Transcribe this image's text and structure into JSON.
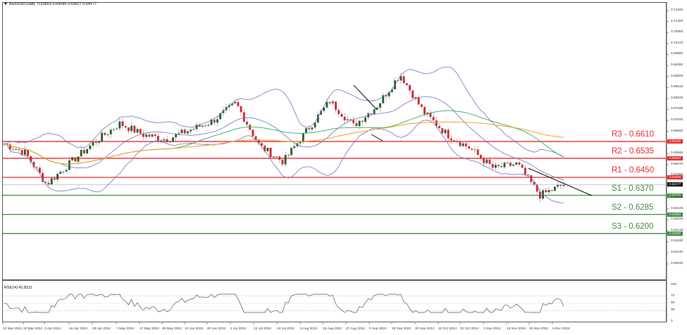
{
  "header": {
    "symbol": "AUDUSD,Daily",
    "ohlc": "0.63653 0.64289 0.63627 0.64177"
  },
  "rsi": {
    "label": "RSI(14) 41.8111",
    "ticks": [
      "100",
      "70",
      "50",
      "30",
      "0"
    ]
  },
  "levels": [
    {
      "name": "R3",
      "label": "R3 - 0.6610",
      "value": 0.661,
      "tag": "0.66100",
      "color": "#e8262a"
    },
    {
      "name": "R2",
      "label": "R2 - 0.6535",
      "value": 0.6535,
      "tag": "0.65350",
      "color": "#e8262a"
    },
    {
      "name": "R1",
      "label": "R1 - 0.6450",
      "value": 0.645,
      "tag": "0.64500",
      "color": "#e8262a"
    },
    {
      "name": "S1",
      "label": "S1 - 0.6370",
      "value": 0.637,
      "tag": "0.63700",
      "color": "#3a8a3a"
    },
    {
      "name": "S2",
      "label": "S2 - 0.6285",
      "value": 0.6285,
      "tag": "0.62850",
      "color": "#3a8a3a"
    },
    {
      "name": "S3",
      "label": "S3 - 0.6200",
      "value": 0.62,
      "tag": "0.62000",
      "color": "#3a8a3a"
    }
  ],
  "current_price_tag": "0.64177",
  "y_ticks": [
    "0.71940",
    "0.71450",
    "0.70960",
    "0.70470",
    "0.69980",
    "0.69490",
    "0.69000",
    "0.68510",
    "0.68020",
    "0.67530",
    "0.67040",
    "0.66550",
    "0.65560",
    "0.65070",
    "0.64580",
    "0.63590",
    "0.63100",
    "0.62610",
    "0.62120",
    "0.61630",
    "0.61140",
    "0.60640"
  ],
  "x_ticks": [
    "12 Mar 2024",
    "22 Mar 2024",
    "3 Apr 2024",
    "15 Apr 2024",
    "25 Apr 2024",
    "7 May 2024",
    "17 May 2024",
    "29 May 2024",
    "10 Jun 2024",
    "20 Jun 2024",
    "2 Jul 2024",
    "12 Jul 2024",
    "24 Jul 2024",
    "5 Aug 2024",
    "15 Aug 2024",
    "27 Aug 2024",
    "6 Sep 2024",
    "18 Sep 2024",
    "30 Sep 2024",
    "10 Oct 2024",
    "22 Oct 2024",
    "1 Nov 2024",
    "13 Nov 2024",
    "25 Nov 2024",
    "5 Dec 2024"
  ],
  "colors": {
    "bull": "#1e5a2a",
    "bear": "#d0202a",
    "bollinger": "#6a6fc0",
    "ma_fast": "#3cb371",
    "ma_slow": "#f39c1f",
    "trendline": "#000000",
    "price_line": "#c8c8c8"
  },
  "chart_data": {
    "type": "candlestick",
    "title": "AUDUSD,Daily",
    "instrument": "AUDUSD",
    "timeframe": "Daily",
    "last_ohlc": {
      "open": 0.63653,
      "high": 0.64289,
      "low": 0.63627,
      "close": 0.64177
    },
    "ylim": [
      0.6064,
      0.7194
    ],
    "x_range": [
      "12 Mar 2024",
      "10 Dec 2024"
    ],
    "approx_close_path": [
      {
        "date": "12 Mar 2024",
        "close": 0.66
      },
      {
        "date": "3 Apr 2024",
        "close": 0.656
      },
      {
        "date": "15 Apr 2024",
        "close": 0.642
      },
      {
        "date": "25 Apr 2024",
        "close": 0.652
      },
      {
        "date": "7 May 2024",
        "close": 0.661
      },
      {
        "date": "17 May 2024",
        "close": 0.669
      },
      {
        "date": "29 May 2024",
        "close": 0.664
      },
      {
        "date": "10 Jun 2024",
        "close": 0.662
      },
      {
        "date": "20 Jun 2024",
        "close": 0.666
      },
      {
        "date": "2 Jul 2024",
        "close": 0.67
      },
      {
        "date": "12 Jul 2024",
        "close": 0.678
      },
      {
        "date": "24 Jul 2024",
        "close": 0.659
      },
      {
        "date": "5 Aug 2024",
        "close": 0.652
      },
      {
        "date": "15 Aug 2024",
        "close": 0.666
      },
      {
        "date": "27 Aug 2024",
        "close": 0.679
      },
      {
        "date": "6 Sep 2024",
        "close": 0.668
      },
      {
        "date": "18 Sep 2024",
        "close": 0.677
      },
      {
        "date": "30 Sep 2024",
        "close": 0.691
      },
      {
        "date": "10 Oct 2024",
        "close": 0.674
      },
      {
        "date": "22 Oct 2024",
        "close": 0.664
      },
      {
        "date": "1 Nov 2024",
        "close": 0.658
      },
      {
        "date": "13 Nov 2024",
        "close": 0.649
      },
      {
        "date": "25 Nov 2024",
        "close": 0.651
      },
      {
        "date": "5 Dec 2024",
        "close": 0.637
      },
      {
        "date": "10 Dec 2024",
        "close": 0.6418
      }
    ],
    "horizontal_levels": [
      {
        "label": "R3 - 0.6610",
        "value": 0.661
      },
      {
        "label": "R2 - 0.6535",
        "value": 0.6535
      },
      {
        "label": "R1 - 0.6450",
        "value": 0.645
      },
      {
        "label": "S1 - 0.6370",
        "value": 0.637
      },
      {
        "label": "S2 - 0.6285",
        "value": 0.6285
      },
      {
        "label": "S3 - 0.6200",
        "value": 0.62
      }
    ],
    "indicators": [
      "Bollinger Bands",
      "Moving Average (fast, green)",
      "Moving Average (slow, orange)",
      "Downtrend line"
    ],
    "subplot": {
      "type": "line",
      "title": "RSI(14) 41.8111",
      "ylim": [
        0,
        100
      ],
      "levels": [
        30,
        50,
        70
      ],
      "last_value": 41.8111
    },
    "grid": false,
    "legend": "none"
  }
}
